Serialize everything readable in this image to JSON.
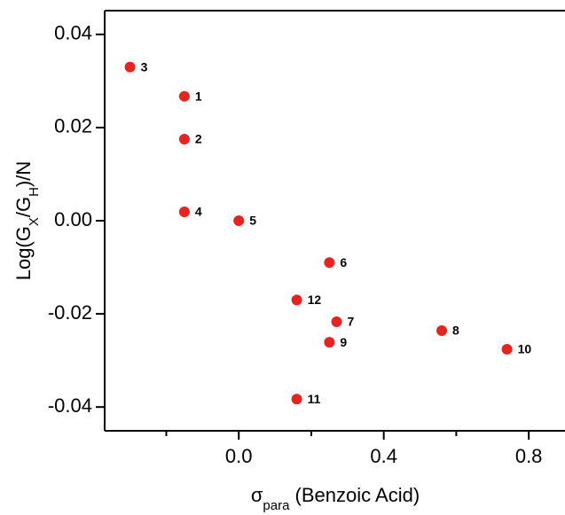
{
  "chart_data": {
    "type": "scatter",
    "x_label": [
      "σ",
      "para",
      " (Benzoic Acid)"
    ],
    "y_label": [
      "Log(G",
      "X",
      "/G",
      "H",
      ")/N"
    ],
    "series": [
      {
        "color": "#e3241f",
        "labels": [
          "3",
          "1",
          "2",
          "4",
          "5",
          "6",
          "12",
          "7",
          "9",
          "8",
          "10",
          "11"
        ],
        "x": [
          -0.3,
          -0.15,
          -0.15,
          -0.15,
          0,
          0.25,
          0.16,
          0.27,
          0.25,
          0.56,
          0.74,
          0.16
        ],
        "values": [
          0.033,
          0.0267,
          0.0175,
          0.0019,
          0,
          -0.009,
          -0.017,
          -0.0217,
          -0.0261,
          -0.0236,
          -0.0276,
          -0.0383
        ]
      }
    ],
    "xlim": [
      -0.37,
      0.9
    ],
    "ylim": [
      -0.0451,
      0.0451
    ],
    "xticks": [
      {
        "value": 0,
        "label": "0.0"
      },
      0.4,
      0.8
    ],
    "xminorticks": [
      -0.2,
      0.2,
      0.6
    ],
    "yticks": [
      0.04,
      0.02,
      {
        "value": 0,
        "label": "0.00"
      },
      -0.02,
      -0.04
    ]
  }
}
